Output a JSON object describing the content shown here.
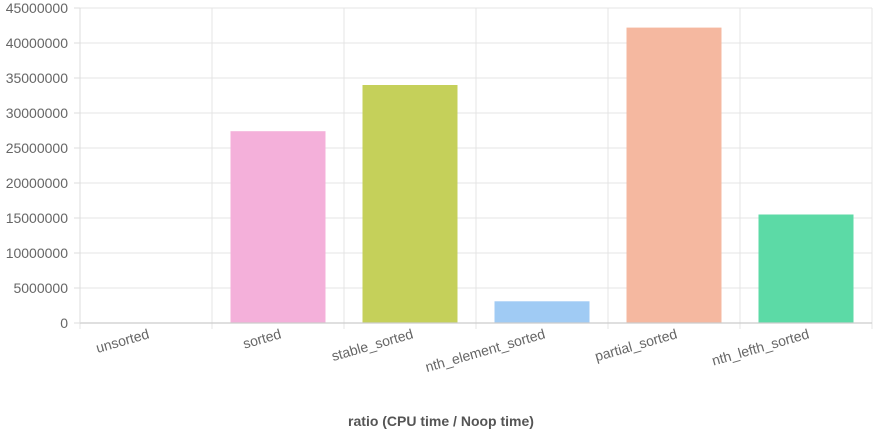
{
  "chart_data": {
    "type": "bar",
    "title": "",
    "xlabel": "ratio (CPU time / Noop time)",
    "ylabel": "",
    "categories": [
      "unsorted",
      "sorted",
      "stable_sorted",
      "nth_element_sorted",
      "partial_sorted",
      "nth_lefth_sorted"
    ],
    "series": [
      {
        "values": [
          0,
          27400000,
          34000000,
          3100000,
          42200000,
          15500000
        ]
      }
    ],
    "colors": [
      "#f4a6b0",
      "#f4b0da",
      "#c5d05a",
      "#a0cbf4",
      "#f5b8a0",
      "#5cdaa6"
    ],
    "ylim": [
      0,
      45000000
    ],
    "yticks": [
      "0",
      "5000000",
      "10000000",
      "15000000",
      "20000000",
      "25000000",
      "30000000",
      "35000000",
      "40000000",
      "45000000"
    ],
    "grid": true,
    "legend": "none"
  }
}
